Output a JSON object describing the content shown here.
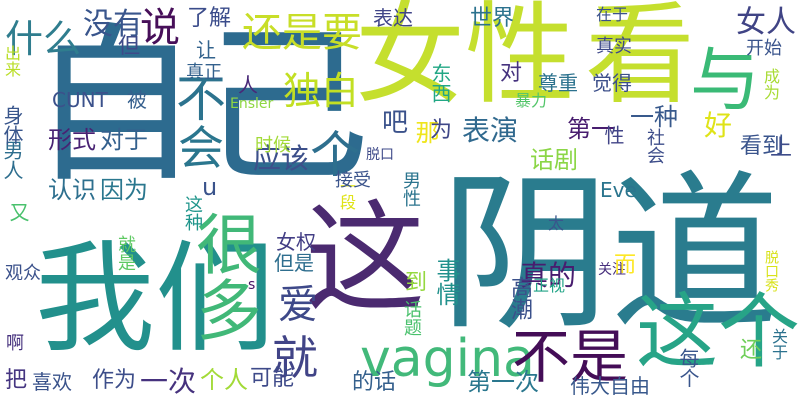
{
  "words": [
    {
      "text": "自己",
      "color": "#2d6b8f"
    },
    {
      "text": "阴道",
      "color": "#2a7c8e"
    },
    {
      "text": "女性",
      "color": "#c5df2e"
    },
    {
      "text": "看",
      "color": "#c5df2e"
    },
    {
      "text": "我们",
      "color": "#22908c"
    },
    {
      "text": "这",
      "color": "#4b2a70"
    },
    {
      "text": "与",
      "color": "#3aba76"
    },
    {
      "text": "vagina",
      "color": "#42b97a"
    },
    {
      "text": "这个",
      "color": "#27a487"
    },
    {
      "text": "不是",
      "color": "#440d57"
    },
    {
      "text": "说",
      "color": "#470f59"
    },
    {
      "text": "还是要",
      "color": "#c8de28"
    },
    {
      "text": "什么",
      "color": "#2f7d8e"
    },
    {
      "text": "没有",
      "color": "#39558c"
    },
    {
      "text": "了解",
      "color": "#3a4b8a"
    },
    {
      "text": "表达",
      "color": "#404588"
    },
    {
      "text": "世界",
      "color": "#2b728e"
    },
    {
      "text": "女人",
      "color": "#404485"
    },
    {
      "text": "独白",
      "color": "#c2df23"
    },
    {
      "text": "不",
      "color": "#2c738e"
    },
    {
      "text": "会",
      "color": "#2a768e"
    },
    {
      "text": "很多",
      "color": "#41b878"
    },
    {
      "text": "个",
      "color": "#2e6f8e"
    },
    {
      "text": "应该",
      "color": "#3c4f8a"
    },
    {
      "text": "爱",
      "color": "#3e4989"
    },
    {
      "text": "就",
      "color": "#414487"
    },
    {
      "text": "CUNT",
      "color": "#3b518b"
    },
    {
      "text": "被",
      "color": "#355f8d"
    },
    {
      "text": "形式",
      "color": "#482273"
    },
    {
      "text": "对于",
      "color": "#34608d"
    },
    {
      "text": "认识",
      "color": "#2d6f8e"
    },
    {
      "text": "因为",
      "color": "#2a778e"
    },
    {
      "text": "表演",
      "color": "#30698e"
    },
    {
      "text": "第一",
      "color": "#481d6f"
    },
    {
      "text": "一种",
      "color": "#38598c"
    },
    {
      "text": "好",
      "color": "#dfe318"
    },
    {
      "text": "看到",
      "color": "#3a548c"
    },
    {
      "text": "话剧",
      "color": "#8bd646"
    },
    {
      "text": "Eve",
      "color": "#2b758e"
    },
    {
      "text": "女权",
      "color": "#433e85"
    },
    {
      "text": "但是",
      "color": "#2e6e8e"
    },
    {
      "text": "事情",
      "color": "#21918c"
    },
    {
      "text": "真的",
      "color": "#481d6f"
    },
    {
      "text": "到",
      "color": "#95d840"
    },
    {
      "text": "一次",
      "color": "#46327e"
    },
    {
      "text": "个人",
      "color": "#a2da37"
    },
    {
      "text": "可能",
      "color": "#3e4a89"
    },
    {
      "text": "的话",
      "color": "#35608d"
    },
    {
      "text": "第一次",
      "color": "#2a778e"
    },
    {
      "text": "伟大自由",
      "color": "#38588c"
    },
    {
      "text": "作为",
      "color": "#3d4e8a"
    },
    {
      "text": "喜欢",
      "color": "#3a538b"
    },
    {
      "text": "把",
      "color": "#453581"
    },
    {
      "text": "男人",
      "color": "#2e6e8e"
    },
    {
      "text": "身体",
      "color": "#39568c"
    },
    {
      "text": "出来",
      "color": "#bade28"
    },
    {
      "text": "但",
      "color": "#3e4a89"
    },
    {
      "text": "让",
      "color": "#33638d"
    },
    {
      "text": "真正",
      "color": "#34618d"
    },
    {
      "text": "人",
      "color": "#482878"
    },
    {
      "text": "Ensler",
      "color": "#8fd744"
    },
    {
      "text": "暴力",
      "color": "#52c569"
    },
    {
      "text": "时候",
      "color": "#a2da37"
    },
    {
      "text": "这种",
      "color": "#1f958b"
    },
    {
      "text": "一段",
      "color": "#dfe318"
    },
    {
      "text": "接受",
      "color": "#3a538b"
    },
    {
      "text": "男性",
      "color": "#2b748e"
    },
    {
      "text": "脱口",
      "color": "#3e4a89"
    },
    {
      "text": "就是",
      "color": "#5ec962"
    },
    {
      "text": "又",
      "color": "#4ac16d"
    },
    {
      "text": "观众",
      "color": "#3b518b"
    },
    {
      "text": "啊",
      "color": "#46327e"
    },
    {
      "text": "s",
      "color": "#471365"
    },
    {
      "text": "关注",
      "color": "#472f7d"
    },
    {
      "text": "正视",
      "color": "#20a386"
    },
    {
      "text": "高潮",
      "color": "#3b518b"
    },
    {
      "text": "话题",
      "color": "#4ac16d"
    },
    {
      "text": "而",
      "color": "#fde725"
    },
    {
      "text": "太",
      "color": "#39568c"
    },
    {
      "text": "东西",
      "color": "#22a785"
    },
    {
      "text": "尊重",
      "color": "#2c728e"
    },
    {
      "text": "觉得",
      "color": "#3c4f8a"
    },
    {
      "text": "真实",
      "color": "#3e4989"
    },
    {
      "text": "开始",
      "color": "#3a548c"
    },
    {
      "text": "在于",
      "color": "#3b528b"
    },
    {
      "text": "成为",
      "color": "#a8db34"
    },
    {
      "text": "社会",
      "color": "#3d4d8a"
    },
    {
      "text": "性",
      "color": "#414487"
    },
    {
      "text": "上",
      "color": "#3e4c8a"
    },
    {
      "text": "每个",
      "color": "#39558c"
    },
    {
      "text": "还",
      "color": "#6ece58"
    },
    {
      "text": "关于",
      "color": "#2c728e"
    },
    {
      "text": "脱口秀",
      "color": "#d8e219"
    },
    {
      "text": "那",
      "color": "#efe51c"
    },
    {
      "text": "为",
      "color": "#3f4788"
    },
    {
      "text": "吧",
      "color": "#3b528b"
    },
    {
      "text": "对",
      "color": "#46337f"
    },
    {
      "text": "u",
      "color": "#3a538b"
    }
  ]
}
